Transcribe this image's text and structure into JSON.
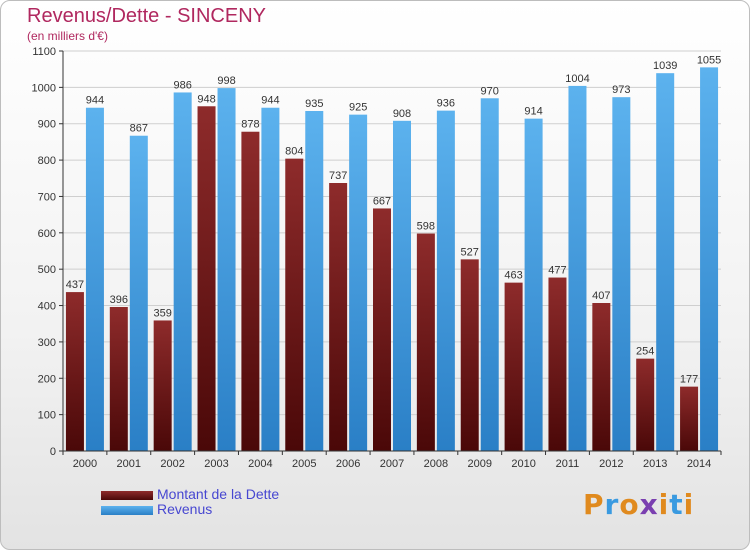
{
  "header": {
    "title": "Revenus/Dette - SINCENY",
    "subtitle": "(en milliers d'€)"
  },
  "chart_data": {
    "type": "bar",
    "title": "Revenus/Dette - SINCENY",
    "ylabel": "(en milliers d'€)",
    "xlabel": "",
    "categories": [
      "2000",
      "2001",
      "2002",
      "2003",
      "2004",
      "2005",
      "2006",
      "2007",
      "2008",
      "2009",
      "2010",
      "2011",
      "2012",
      "2013",
      "2014"
    ],
    "series": [
      {
        "name": "Montant de la Dette",
        "color": "#7a1a1a",
        "values": [
          437,
          396,
          359,
          948,
          878,
          804,
          737,
          667,
          598,
          527,
          463,
          477,
          407,
          254,
          177
        ]
      },
      {
        "name": "Revenus",
        "color": "#3a9ae0",
        "values": [
          944,
          867,
          986,
          998,
          944,
          935,
          925,
          908,
          936,
          970,
          914,
          1004,
          973,
          1039,
          1055
        ]
      }
    ],
    "ylim": [
      0,
      1100
    ],
    "yticks": [
      0,
      100,
      200,
      300,
      400,
      500,
      600,
      700,
      800,
      900,
      1000,
      1100
    ],
    "grid": true,
    "legend": "bottom-left"
  },
  "legend": {
    "items": [
      {
        "label": "Montant de la Dette",
        "color": "#7a1a1a"
      },
      {
        "label": "Revenus",
        "color": "#3a9ae0"
      }
    ]
  },
  "logo": {
    "letters": [
      "P",
      "r",
      "o",
      "x",
      "i",
      "t",
      "i"
    ],
    "colors": [
      "#e08a1e",
      "#3a9ae0",
      "#e08a1e",
      "#7a3fb0",
      "#e08a1e",
      "#3a9ae0",
      "#e08a1e"
    ]
  }
}
